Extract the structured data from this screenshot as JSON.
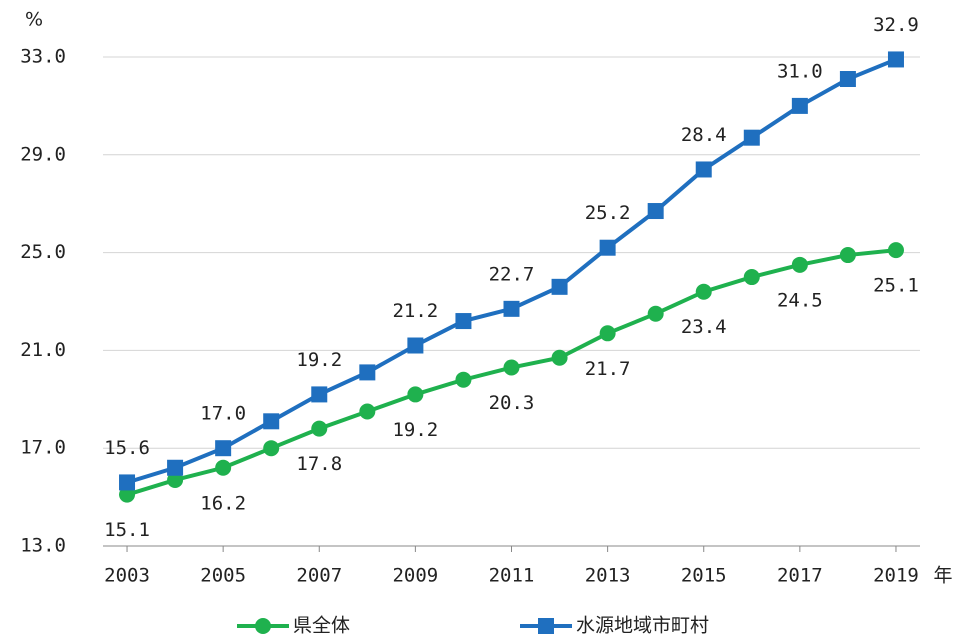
{
  "chart_data": {
    "type": "line",
    "y_unit": "%",
    "x_unit": "年",
    "x": [
      2003,
      2004,
      2005,
      2006,
      2007,
      2008,
      2009,
      2010,
      2011,
      2012,
      2013,
      2014,
      2015,
      2016,
      2017,
      2018,
      2019
    ],
    "xlim": [
      2002.5,
      2019.5
    ],
    "xticks": [
      2003,
      2005,
      2007,
      2009,
      2011,
      2013,
      2015,
      2017,
      2019
    ],
    "ylim": [
      13,
      33
    ],
    "yticks": [
      {
        "value": 13,
        "label": "13.0"
      },
      {
        "value": 17,
        "label": "17.0"
      },
      {
        "value": 21,
        "label": "21.0"
      },
      {
        "value": 25,
        "label": "25.0"
      },
      {
        "value": 29,
        "label": "29.0"
      },
      {
        "value": 33,
        "label": "33.0"
      }
    ],
    "grid": true,
    "legend": "bottom",
    "series": [
      {
        "name": "県全体",
        "color": "#1fb14e",
        "marker": "circle",
        "label_side": "below",
        "values": [
          15.1,
          15.7,
          16.2,
          17.0,
          17.8,
          18.5,
          19.2,
          19.8,
          20.3,
          20.7,
          21.7,
          22.5,
          23.4,
          24.0,
          24.5,
          24.9,
          25.1
        ],
        "value_labels": [
          "15.1",
          null,
          "16.2",
          null,
          "17.8",
          null,
          "19.2",
          null,
          "20.3",
          null,
          "21.7",
          null,
          "23.4",
          null,
          "24.5",
          null,
          "25.1"
        ]
      },
      {
        "name": "水源地域市町村",
        "color": "#1f6fbf",
        "marker": "square",
        "label_side": "above",
        "values": [
          15.6,
          16.2,
          17.0,
          18.1,
          19.2,
          20.1,
          21.2,
          22.2,
          22.7,
          23.6,
          25.2,
          26.7,
          28.4,
          29.7,
          31.0,
          32.1,
          32.9
        ],
        "value_labels": [
          "15.6",
          null,
          "17.0",
          null,
          "19.2",
          null,
          "21.2",
          null,
          "22.7",
          null,
          "25.2",
          null,
          "28.4",
          null,
          "31.0",
          null,
          "32.9"
        ]
      }
    ]
  }
}
